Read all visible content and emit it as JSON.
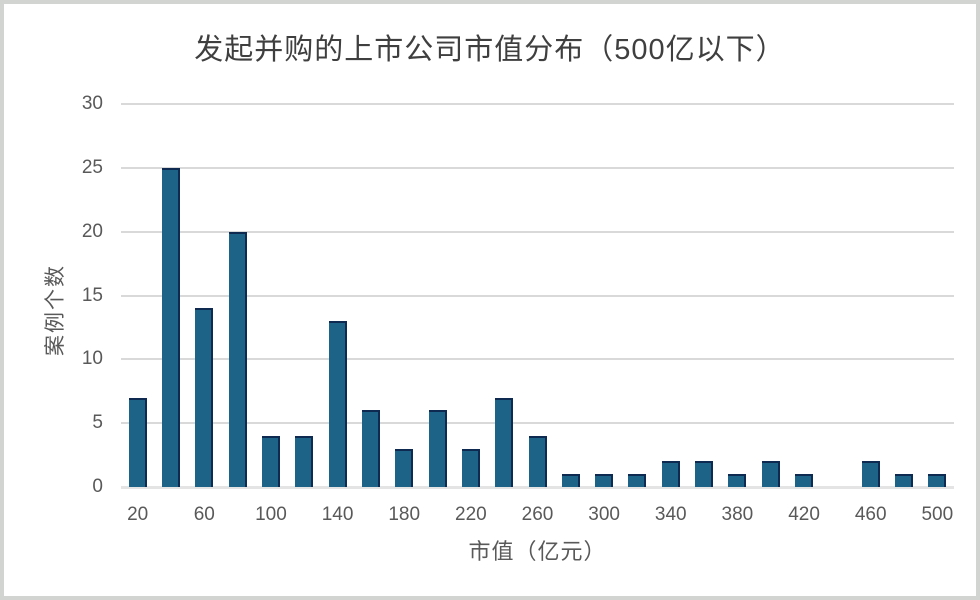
{
  "frame": {
    "border_color": "#d2d4d1",
    "background_color": "#ffffff"
  },
  "chart_data": {
    "type": "bar",
    "title": "发起并购的上市公司市值分布（500亿以下）",
    "xlabel": "市值（亿元）",
    "ylabel": "案例个数",
    "categories": [
      20,
      40,
      60,
      80,
      100,
      120,
      140,
      160,
      180,
      200,
      220,
      240,
      260,
      280,
      300,
      320,
      340,
      360,
      380,
      400,
      420,
      440,
      460,
      480,
      500
    ],
    "values": [
      7,
      25,
      14,
      20,
      4,
      4,
      13,
      6,
      3,
      6,
      3,
      7,
      4,
      1,
      1,
      1,
      2,
      2,
      1,
      2,
      1,
      0,
      2,
      1,
      1
    ],
    "x_tick_labels": [
      "20",
      "60",
      "100",
      "140",
      "180",
      "220",
      "260",
      "300",
      "340",
      "380",
      "420",
      "460",
      "500"
    ],
    "y_ticks": [
      0,
      5,
      10,
      15,
      20,
      25,
      30
    ],
    "ylim": [
      0,
      30
    ],
    "grid": true,
    "legend": "none",
    "bar_color": "#1d6387",
    "bar_edge_color": "#0e2a50",
    "gridline_color": "#d9d9d9",
    "axis_line_color": "#e4e4e4",
    "title_color": "#3f3f3f",
    "tick_label_color": "#595959"
  }
}
